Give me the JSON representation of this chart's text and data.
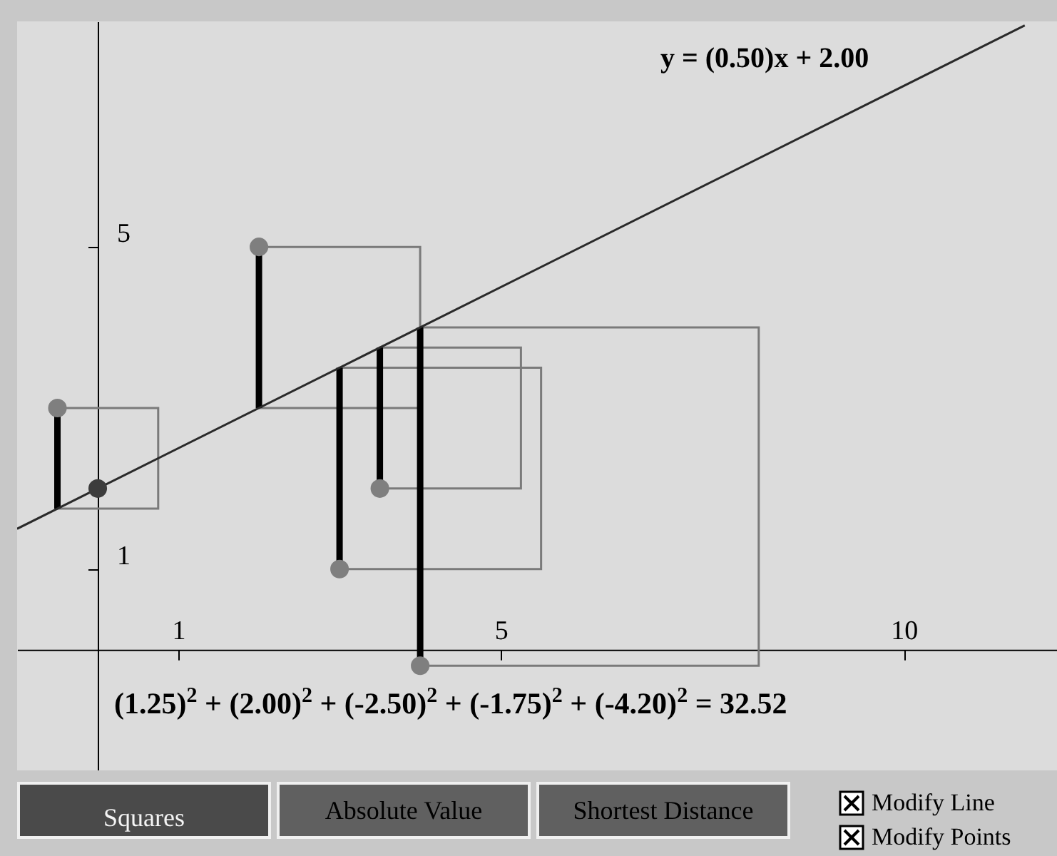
{
  "chart_data": {
    "type": "scatter",
    "xlim": [
      -1.0,
      11.9
    ],
    "ylim": [
      -1.5,
      7.8
    ],
    "xticks": [
      1,
      5,
      10
    ],
    "yticks": [
      1,
      5
    ],
    "series": [
      {
        "color": "#7f7f7f",
        "x": [
          -0.5,
          2,
          3,
          3.5,
          4
        ],
        "values": [
          3,
          5,
          1,
          2,
          -0.2
        ],
        "errors": [
          [
            1.75,
            3
          ],
          [
            3,
            5
          ],
          [
            1,
            3.5
          ],
          [
            2,
            3.75
          ],
          [
            -0.2,
            4
          ]
        ]
      },
      {
        "color": "#3c3c3c",
        "x": [
          0
        ],
        "values": [
          2
        ]
      },
      {
        "type": "line",
        "color": "#2a2a2a",
        "x": [
          -1,
          11.5
        ],
        "values": [
          1.5,
          7.75
        ]
      }
    ],
    "annotations": [
      "y = (0.50)x + 2.00",
      "(1.25)$^{2}$ + (2.00)$^{2}$ + (-2.50)$^{2}$ + (-1.75)$^{2}$ + (-4.20)$^{2}$ = 32.52",
      "Squares",
      "Absolute Value",
      "Shortest Distance",
      "Modify Line",
      "Modify Points"
    ]
  }
}
